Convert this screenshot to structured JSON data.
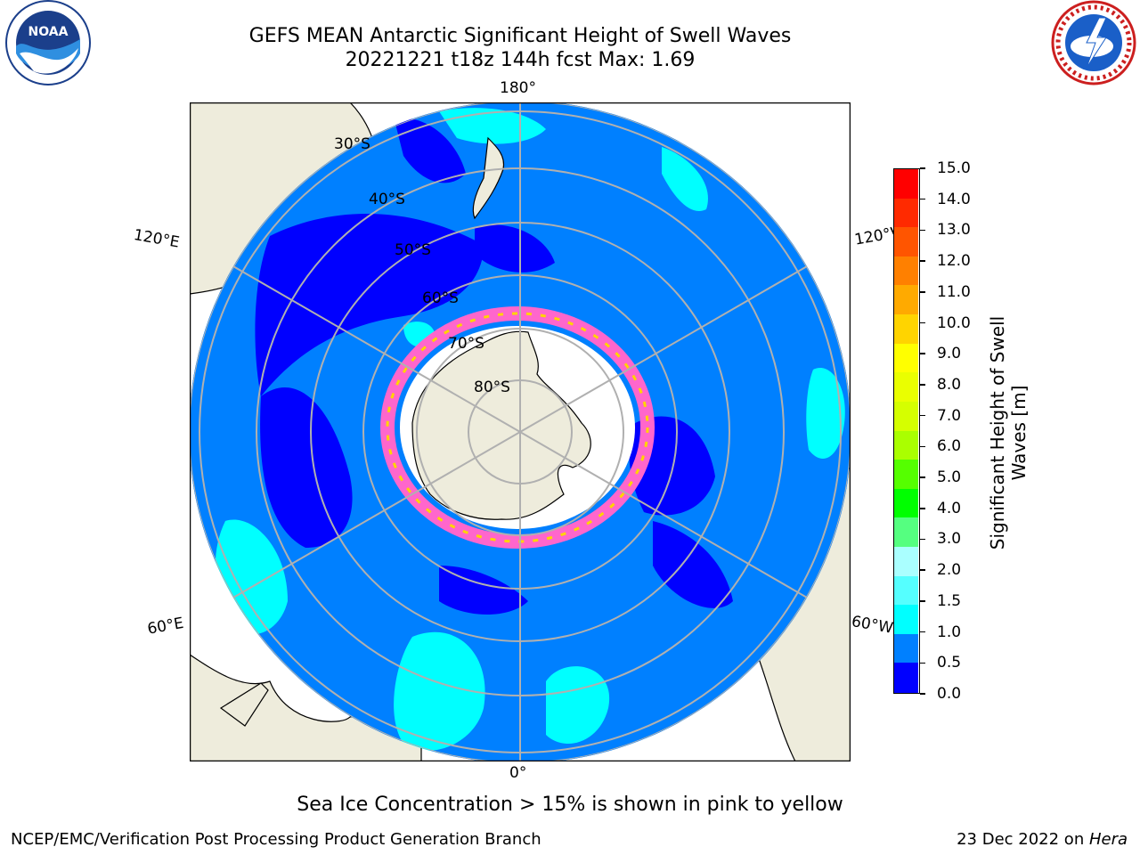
{
  "title_line1": "GEFS MEAN Antarctic Significant Height of Swell Waves",
  "title_line2": "20221221 t18z 144h fcst   Max: 1.69",
  "logos": {
    "left": "NOAA",
    "right": "NATIONAL WEATHER SERVICE"
  },
  "map": {
    "projection": "south-polar-stereographic",
    "longitude_labels": {
      "top": "180°",
      "bottom": "0°",
      "left_upper": "120°E",
      "left_lower": "60°E",
      "right_upper": "120°W",
      "right_lower": "60°W"
    },
    "latitude_labels": [
      "30°S",
      "40°S",
      "50°S",
      "60°S",
      "70°S",
      "80°S"
    ],
    "colors": {
      "land": "#eeecdc",
      "ocean_0_5_1_0": "#0080ff",
      "ocean_0_0_5": "#0000ff",
      "ocean_1_0_1_5": "#00ffff",
      "sea_ice": "#ff66cc",
      "grid": "#b0b0b0"
    }
  },
  "colorbar": {
    "label_line1": "Significant Height of Swell",
    "label_line2": "Waves [m]",
    "ticks": [
      "15.0",
      "14.0",
      "13.0",
      "12.0",
      "11.0",
      "10.0",
      "9.0",
      "8.0",
      "7.0",
      "6.0",
      "5.0",
      "4.0",
      "3.0",
      "2.0",
      "1.5",
      "1.0",
      "0.5",
      "0.0"
    ],
    "colors_top_to_bottom": [
      "#ff0000",
      "#ff2a00",
      "#ff5500",
      "#ff8000",
      "#ffaa00",
      "#ffd400",
      "#ffff00",
      "#eaff00",
      "#d5ff00",
      "#aaff00",
      "#55ff00",
      "#00ff00",
      "#55ff80",
      "#aaffff",
      "#55ffff",
      "#00ffff",
      "#0080ff",
      "#0000ff"
    ]
  },
  "footer": {
    "note": "Sea Ice Concentration > 15% is shown in pink to yellow",
    "left": "NCEP/EMC/Verification Post Processing Product Generation Branch",
    "right_date": "23 Dec 2022 on ",
    "right_machine": "Hera"
  }
}
